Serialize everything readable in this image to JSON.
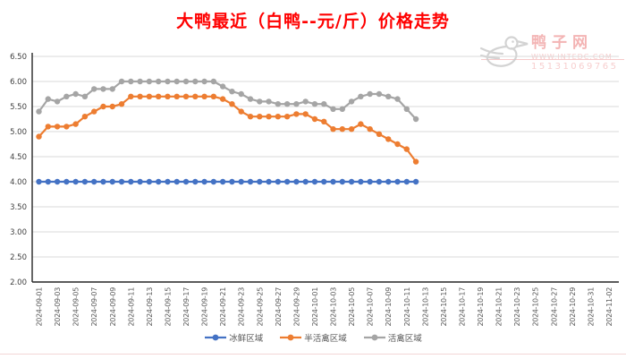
{
  "title": "大鸭最近（白鸭--元/斤）价格走势",
  "watermark": {
    "site_name": "鸭子网",
    "url": "WWW.INTEDC.COM",
    "phone": "15131069765"
  },
  "colors": {
    "title_red": "#ff0000",
    "grid": "#d9d9d9",
    "axis": "#262626",
    "tick_text": "#404040",
    "xtick_text": "#595959"
  },
  "chart_data": {
    "type": "line",
    "title": "大鸭最近（白鸭--元/斤）价格走势",
    "xlabel": "",
    "ylabel": "",
    "ylim": [
      2.0,
      6.5
    ],
    "y_ticks": [
      "6.50",
      "6.00",
      "5.50",
      "5.00",
      "4.50",
      "4.00",
      "3.50",
      "3.00",
      "2.50",
      "2.00"
    ],
    "grid": true,
    "legend_position": "bottom",
    "x_tick_labels": [
      "2024-09-01",
      "2024-09-03",
      "2024-09-05",
      "2024-09-07",
      "2024-09-09",
      "2024-09-11",
      "2024-09-13",
      "2024-09-15",
      "2024-09-17",
      "2024-09-19",
      "2024-09-21",
      "2024-09-23",
      "2024-09-25",
      "2024-09-27",
      "2024-09-29",
      "2024-10-01",
      "2024-10-03",
      "2024-10-05",
      "2024-10-07",
      "2024-10-09",
      "2024-10-11",
      "2024-10-13",
      "2024-10-15",
      "2024-10-17",
      "2024-10-19",
      "2024-10-21",
      "2024-10-23",
      "2024-10-25",
      "2024-10-27",
      "2024-10-29",
      "2024-10-31",
      "2024-11-02"
    ],
    "x": [
      "2024-09-01",
      "2024-09-02",
      "2024-09-03",
      "2024-09-04",
      "2024-09-05",
      "2024-09-06",
      "2024-09-07",
      "2024-09-08",
      "2024-09-09",
      "2024-09-10",
      "2024-09-11",
      "2024-09-12",
      "2024-09-13",
      "2024-09-14",
      "2024-09-15",
      "2024-09-16",
      "2024-09-17",
      "2024-09-18",
      "2024-09-19",
      "2024-09-20",
      "2024-09-21",
      "2024-09-22",
      "2024-09-23",
      "2024-09-24",
      "2024-09-25",
      "2024-09-26",
      "2024-09-27",
      "2024-09-28",
      "2024-09-29",
      "2024-09-30",
      "2024-10-01",
      "2024-10-02",
      "2024-10-03",
      "2024-10-04",
      "2024-10-05",
      "2024-10-06",
      "2024-10-07",
      "2024-10-08",
      "2024-10-09",
      "2024-10-10",
      "2024-10-11",
      "2024-10-12"
    ],
    "series": [
      {
        "name": "冰鲜区域",
        "color": "#4472c4",
        "values": [
          4.0,
          4.0,
          4.0,
          4.0,
          4.0,
          4.0,
          4.0,
          4.0,
          4.0,
          4.0,
          4.0,
          4.0,
          4.0,
          4.0,
          4.0,
          4.0,
          4.0,
          4.0,
          4.0,
          4.0,
          4.0,
          4.0,
          4.0,
          4.0,
          4.0,
          4.0,
          4.0,
          4.0,
          4.0,
          4.0,
          4.0,
          4.0,
          4.0,
          4.0,
          4.0,
          4.0,
          4.0,
          4.0,
          4.0,
          4.0,
          4.0,
          4.0
        ]
      },
      {
        "name": "半活禽区域",
        "color": "#ed7d31",
        "values": [
          4.9,
          5.1,
          5.1,
          5.1,
          5.15,
          5.3,
          5.4,
          5.5,
          5.5,
          5.55,
          5.7,
          5.7,
          5.7,
          5.7,
          5.7,
          5.7,
          5.7,
          5.7,
          5.7,
          5.7,
          5.65,
          5.55,
          5.4,
          5.3,
          5.3,
          5.3,
          5.3,
          5.3,
          5.35,
          5.35,
          5.25,
          5.2,
          5.05,
          5.05,
          5.05,
          5.15,
          5.05,
          4.95,
          4.85,
          4.75,
          4.65,
          4.4
        ]
      },
      {
        "name": "活禽区域",
        "color": "#a5a5a5",
        "values": [
          5.4,
          5.65,
          5.6,
          5.7,
          5.75,
          5.7,
          5.85,
          5.85,
          5.85,
          6.0,
          6.0,
          6.0,
          6.0,
          6.0,
          6.0,
          6.0,
          6.0,
          6.0,
          6.0,
          6.0,
          5.9,
          5.8,
          5.75,
          5.65,
          5.6,
          5.6,
          5.55,
          5.55,
          5.55,
          5.6,
          5.55,
          5.55,
          5.45,
          5.45,
          5.6,
          5.7,
          5.75,
          5.75,
          5.7,
          5.65,
          5.45,
          5.25
        ]
      }
    ]
  }
}
